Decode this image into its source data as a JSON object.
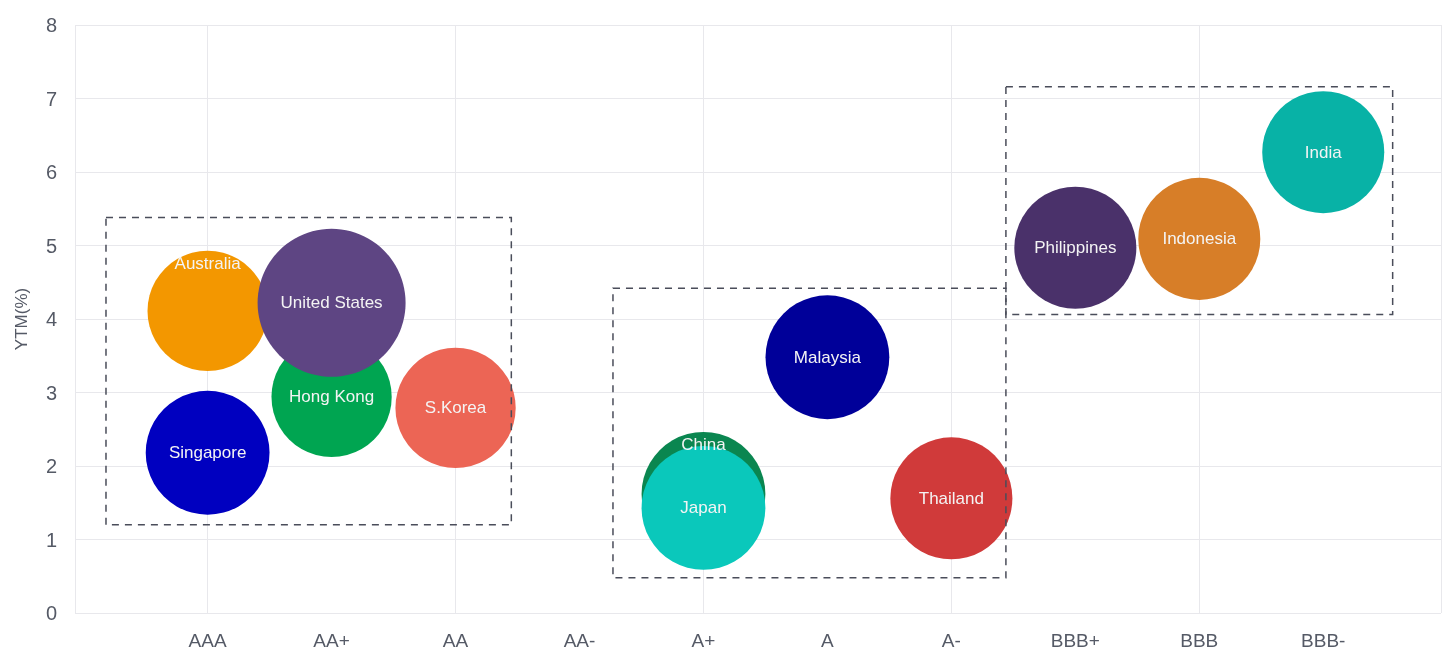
{
  "chart_data": {
    "type": "bubble",
    "ylabel": "YTM(%)",
    "categories": [
      "AAA",
      "AA+",
      "AA",
      "AA-",
      "A+",
      "A",
      "A-",
      "BBB+",
      "BBB",
      "BBB-"
    ],
    "ylim": [
      0,
      8
    ],
    "yticks": [
      0,
      1,
      2,
      3,
      4,
      5,
      6,
      7,
      8
    ],
    "grid": true,
    "legend": false,
    "series": [
      {
        "name": "Australia",
        "color": "#f39700",
        "x": [
          "AAA"
        ],
        "values": [
          4.11
        ],
        "sizes": [
          0.66
        ]
      },
      {
        "name": "Singapore",
        "color": "#0000c0",
        "x": [
          "AAA"
        ],
        "values": [
          2.18
        ],
        "sizes": [
          0.7
        ]
      },
      {
        "name": "Hong Kong",
        "color": "#00a551",
        "x": [
          "AA+"
        ],
        "values": [
          2.94
        ],
        "sizes": [
          0.66
        ]
      },
      {
        "name": "United States",
        "color": "#5e4583",
        "x": [
          "AA+"
        ],
        "values": [
          4.22
        ],
        "sizes": [
          1
        ]
      },
      {
        "name": "S.Korea",
        "color": "#ec6555",
        "x": [
          "AA"
        ],
        "values": [
          2.79
        ],
        "sizes": [
          0.66
        ]
      },
      {
        "name": "China",
        "color": "#0a8650",
        "x": [
          "A+"
        ],
        "values": [
          1.62
        ],
        "sizes": [
          0.7
        ]
      },
      {
        "name": "Japan",
        "color": "#0ac8bb",
        "x": [
          "A+"
        ],
        "values": [
          1.43
        ],
        "sizes": [
          0.7
        ]
      },
      {
        "name": "Malaysia",
        "color": "#000099",
        "x": [
          "A"
        ],
        "values": [
          3.48
        ],
        "sizes": [
          0.7
        ]
      },
      {
        "name": "Thailand",
        "color": "#d03a3a",
        "x": [
          "A-"
        ],
        "values": [
          1.56
        ],
        "sizes": [
          0.68
        ]
      },
      {
        "name": "Philippines",
        "color": "#4a316a",
        "x": [
          "BBB+"
        ],
        "values": [
          4.97
        ],
        "sizes": [
          0.68
        ]
      },
      {
        "name": "Indonesia",
        "color": "#d77e28",
        "x": [
          "BBB"
        ],
        "values": [
          5.09
        ],
        "sizes": [
          0.68
        ]
      },
      {
        "name": "India",
        "color": "#08b2a6",
        "x": [
          "BBB-"
        ],
        "values": [
          6.27
        ],
        "sizes": [
          0.68
        ]
      }
    ]
  }
}
